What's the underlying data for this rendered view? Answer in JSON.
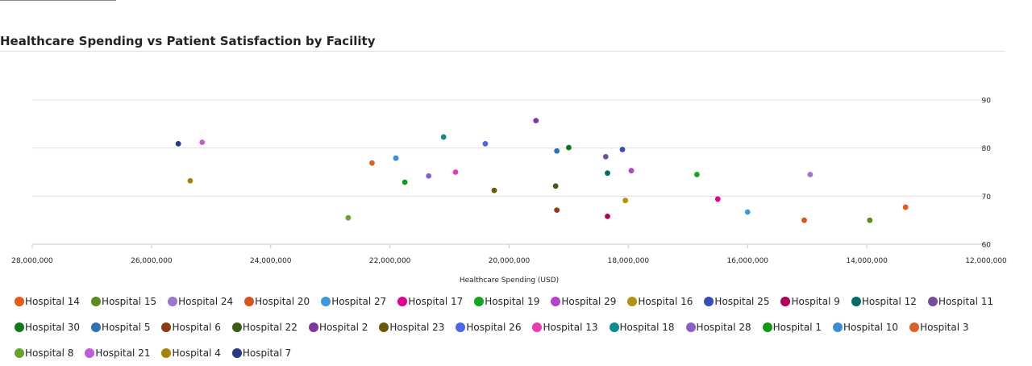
{
  "page": {
    "title": "Healthcare Spending vs Patient Satisfaction by Facility"
  },
  "chart_data": {
    "type": "scatter",
    "title": "Healthcare Spending vs Patient Satisfaction by Facility",
    "xlabel": "Healthcare Spending (USD)",
    "ylabel": "",
    "x_axis_reversed": true,
    "xlim": [
      28000000,
      12000000
    ],
    "ylim": [
      60,
      90
    ],
    "x_ticks": [
      28000000,
      26000000,
      24000000,
      22000000,
      20000000,
      18000000,
      16000000,
      14000000,
      12000000
    ],
    "x_tick_labels": [
      "28,000,000",
      "26,000,000",
      "24,000,000",
      "22,000,000",
      "20,000,000",
      "18,000,000",
      "16,000,000",
      "14,000,000",
      "12,000,000"
    ],
    "y_ticks": [
      60,
      70,
      80,
      90
    ],
    "y_tick_labels": [
      "60",
      "70",
      "80",
      "90"
    ],
    "y_axis_side": "right",
    "grid": true,
    "legend_position": "bottom",
    "series": [
      {
        "name": "Hospital 14",
        "color": "#E8591A",
        "x": 13350000,
        "y": 67.7
      },
      {
        "name": "Hospital 15",
        "color": "#5B8C1F",
        "x": 13950000,
        "y": 65.0
      },
      {
        "name": "Hospital 24",
        "color": "#9A77CF",
        "x": 14950000,
        "y": 74.5
      },
      {
        "name": "Hospital 20",
        "color": "#D4561B",
        "x": 15050000,
        "y": 65.0
      },
      {
        "name": "Hospital 27",
        "color": "#3E98DC",
        "x": 16000000,
        "y": 66.7
      },
      {
        "name": "Hospital 17",
        "color": "#E3008C",
        "x": 16500000,
        "y": 69.4
      },
      {
        "name": "Hospital 19",
        "color": "#16A51E",
        "x": 16850000,
        "y": 74.5
      },
      {
        "name": "Hospital 29",
        "color": "#B245CB",
        "x": 17950000,
        "y": 75.3
      },
      {
        "name": "Hospital 16",
        "color": "#B8920E",
        "x": 18050000,
        "y": 69.1
      },
      {
        "name": "Hospital 25",
        "color": "#3A4CB7",
        "x": 18100000,
        "y": 79.7
      },
      {
        "name": "Hospital 9",
        "color": "#B0005A",
        "x": 18350000,
        "y": 65.8
      },
      {
        "name": "Hospital 12",
        "color": "#046B66",
        "x": 18350000,
        "y": 74.8
      },
      {
        "name": "Hospital 11",
        "color": "#744E9C",
        "x": 18380000,
        "y": 78.2
      },
      {
        "name": "Hospital 30",
        "color": "#10781B",
        "x": 19000000,
        "y": 80.1
      },
      {
        "name": "Hospital 5",
        "color": "#2F72B4",
        "x": 19200000,
        "y": 79.4
      },
      {
        "name": "Hospital 6",
        "color": "#8C3B12",
        "x": 19200000,
        "y": 67.1
      },
      {
        "name": "Hospital 22",
        "color": "#3E5C17",
        "x": 19220000,
        "y": 72.1
      },
      {
        "name": "Hospital 2",
        "color": "#8036A0",
        "x": 19550000,
        "y": 85.7
      },
      {
        "name": "Hospital 23",
        "color": "#6A5A0C",
        "x": 20250000,
        "y": 71.2
      },
      {
        "name": "Hospital 26",
        "color": "#4E67E6",
        "x": 20400000,
        "y": 80.9
      },
      {
        "name": "Hospital 13",
        "color": "#E83CAE",
        "x": 20900000,
        "y": 75.0
      },
      {
        "name": "Hospital 18",
        "color": "#0C8C8C",
        "x": 21100000,
        "y": 82.3
      },
      {
        "name": "Hospital 28",
        "color": "#8B60C8",
        "x": 21350000,
        "y": 74.2
      },
      {
        "name": "Hospital 1",
        "color": "#0E9A12",
        "x": 21750000,
        "y": 72.9
      },
      {
        "name": "Hospital 10",
        "color": "#3C8CD6",
        "x": 21900000,
        "y": 77.9
      },
      {
        "name": "Hospital 3",
        "color": "#D9622A",
        "x": 22300000,
        "y": 76.9
      },
      {
        "name": "Hospital 8",
        "color": "#6BA32D",
        "x": 22700000,
        "y": 65.5
      },
      {
        "name": "Hospital 21",
        "color": "#C25BD9",
        "x": 25150000,
        "y": 81.2
      },
      {
        "name": "Hospital 4",
        "color": "#A5840A",
        "x": 25350000,
        "y": 73.2
      },
      {
        "name": "Hospital 7",
        "color": "#283A86",
        "x": 25550000,
        "y": 80.9
      }
    ]
  }
}
